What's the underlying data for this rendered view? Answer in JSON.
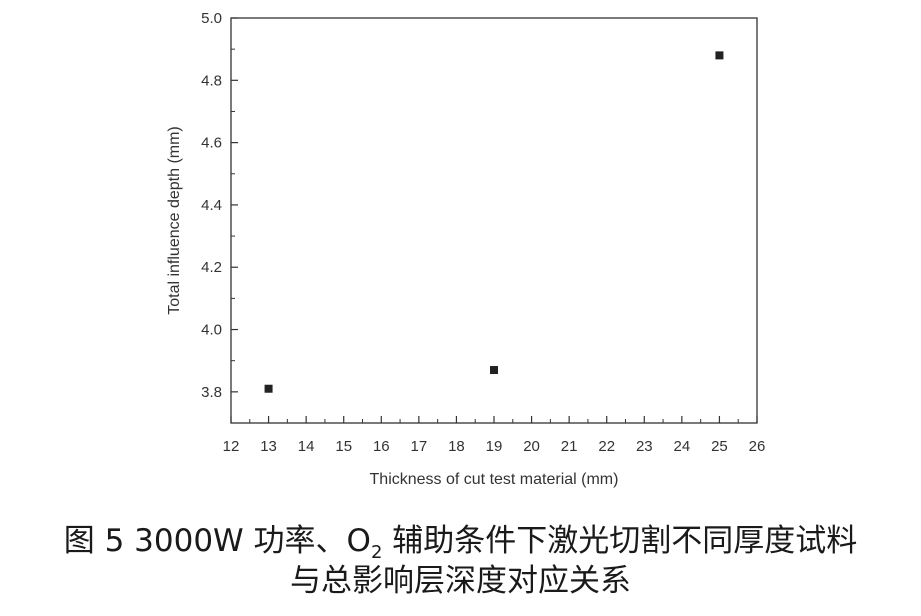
{
  "chart_data": {
    "type": "scatter",
    "xlabel": "Thickness of cut test material (mm)",
    "ylabel": "Total influence depth (mm)",
    "xlim": [
      12,
      26
    ],
    "ylim": [
      3.7,
      5.0
    ],
    "xticks": [
      "12",
      "13",
      "14",
      "15",
      "16",
      "17",
      "18",
      "19",
      "20",
      "21",
      "22",
      "23",
      "24",
      "25",
      "26"
    ],
    "yticks": [
      "3.8",
      "4.0",
      "4.2",
      "4.4",
      "4.6",
      "4.8",
      "5.0"
    ],
    "grid": false,
    "marker": "square",
    "marker_color": "#222222",
    "points": [
      {
        "x": 13,
        "y": 3.81
      },
      {
        "x": 19,
        "y": 3.87
      },
      {
        "x": 25,
        "y": 4.88
      }
    ]
  },
  "caption": {
    "line1_a": "图 5 3000W 功率、O",
    "line1_sub": "2",
    "line1_b": " 辅助条件下激光切割不同厚度试料",
    "line2": "与总影响层深度对应关系"
  }
}
